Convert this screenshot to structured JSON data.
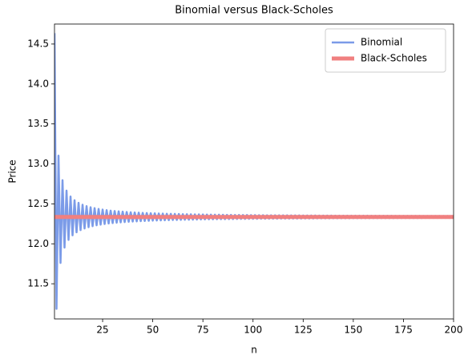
{
  "chart_data": {
    "type": "line",
    "title": "Binomial versus Black-Scholes",
    "xlabel": "n",
    "ylabel": "Price",
    "xlim": [
      1,
      200
    ],
    "xticks": [
      25,
      50,
      75,
      100,
      125,
      150,
      175,
      200
    ],
    "ylim": [
      11.06,
      14.75
    ],
    "yticks": [
      11.5,
      {
        "value": 12,
        "label": "12.0"
      },
      12.5,
      {
        "value": 13,
        "label": "13.0"
      },
      13.5,
      {
        "value": 14,
        "label": "14.0"
      },
      14.5
    ],
    "legend": "upper right",
    "grid": false,
    "series": [
      {
        "name": "Binomial",
        "color": "#7b9be8",
        "width": 2.5,
        "x": [
          1,
          2,
          3,
          4,
          5,
          6,
          7,
          8,
          9,
          10,
          11,
          12,
          13,
          14,
          15,
          16,
          17,
          18,
          19,
          20,
          21,
          22,
          23,
          24,
          25,
          26,
          27,
          28,
          29,
          30,
          31,
          32,
          33,
          34,
          35,
          36,
          37,
          38,
          39,
          40,
          41,
          42,
          43,
          44,
          45,
          46,
          47,
          48,
          49,
          50,
          51,
          52,
          53,
          54,
          55,
          56,
          57,
          58,
          59,
          60,
          61,
          62,
          63,
          64,
          65,
          66,
          67,
          68,
          69,
          70,
          71,
          72,
          73,
          74,
          75,
          76,
          77,
          78,
          79,
          80,
          81,
          82,
          83,
          84,
          85,
          86,
          87,
          88,
          89,
          90,
          91,
          92,
          93,
          94,
          95,
          96,
          97,
          98,
          99,
          100,
          101,
          102,
          103,
          104,
          105,
          106,
          107,
          108,
          109,
          110,
          111,
          112,
          113,
          114,
          115,
          116,
          117,
          118,
          119,
          120,
          121,
          122,
          123,
          124,
          125,
          126,
          127,
          128,
          129,
          130,
          131,
          132,
          133,
          134,
          135,
          136,
          137,
          138,
          139,
          140,
          141,
          142,
          143,
          144,
          145,
          146,
          147,
          148,
          149,
          150,
          151,
          152,
          153,
          154,
          155,
          156,
          157,
          158,
          159,
          160,
          161,
          162,
          163,
          164,
          165,
          166,
          167,
          168,
          169,
          170,
          171,
          172,
          173,
          174,
          175,
          176,
          177,
          178,
          179,
          180,
          181,
          182,
          183,
          184,
          185,
          186,
          187,
          188,
          189,
          190,
          191,
          192,
          193,
          194,
          195,
          196,
          197,
          198,
          199,
          200
        ],
        "values": [
          14.636,
          11.186,
          13.103,
          11.761,
          12.796,
          11.953,
          12.665,
          12.049,
          12.592,
          12.106,
          12.545,
          12.144,
          12.513,
          12.172,
          12.489,
          12.192,
          12.471,
          12.208,
          12.457,
          12.221,
          12.446,
          12.232,
          12.436,
          12.24,
          12.428,
          12.248,
          12.421,
          12.254,
          12.415,
          12.259,
          12.41,
          12.264,
          12.406,
          12.268,
          12.402,
          12.272,
          12.398,
          12.276,
          12.395,
          12.279,
          12.392,
          12.281,
          12.39,
          12.284,
          12.387,
          12.286,
          12.385,
          12.288,
          12.383,
          12.29,
          12.381,
          12.292,
          12.379,
          12.293,
          12.378,
          12.295,
          12.376,
          12.296,
          12.375,
          12.298,
          12.374,
          12.299,
          12.373,
          12.3,
          12.371,
          12.301,
          12.37,
          12.302,
          12.369,
          12.303,
          12.368,
          12.304,
          12.368,
          12.305,
          12.367,
          12.306,
          12.366,
          12.307,
          12.365,
          12.307,
          12.364,
          12.308,
          12.364,
          12.309,
          12.363,
          12.309,
          12.362,
          12.31,
          12.362,
          12.31,
          12.361,
          12.311,
          12.361,
          12.312,
          12.36,
          12.312,
          12.36,
          12.313,
          12.359,
          12.313,
          12.359,
          12.313,
          12.358,
          12.314,
          12.358,
          12.314,
          12.357,
          12.315,
          12.357,
          12.315,
          12.357,
          12.315,
          12.356,
          12.316,
          12.356,
          12.316,
          12.356,
          12.317,
          12.355,
          12.317,
          12.355,
          12.317,
          12.355,
          12.317,
          12.354,
          12.318,
          12.354,
          12.318,
          12.354,
          12.318,
          12.354,
          12.319,
          12.353,
          12.319,
          12.353,
          12.319,
          12.353,
          12.319,
          12.353,
          12.32,
          12.352,
          12.32,
          12.352,
          12.32,
          12.352,
          12.32,
          12.352,
          12.32,
          12.351,
          12.321,
          12.351,
          12.321,
          12.351,
          12.321,
          12.351,
          12.321,
          12.351,
          12.321,
          12.35,
          12.322,
          12.35,
          12.322,
          12.35,
          12.322,
          12.35,
          12.322,
          12.35,
          12.322,
          12.35,
          12.322,
          12.349,
          12.323,
          12.349,
          12.323,
          12.349,
          12.323,
          12.349,
          12.323,
          12.349,
          12.323,
          12.349,
          12.323,
          12.349,
          12.323,
          12.348,
          12.324,
          12.348,
          12.324,
          12.348,
          12.324,
          12.348,
          12.324,
          12.348,
          12.324,
          12.348,
          12.324,
          12.348,
          12.324,
          12.348,
          12.325
        ]
      },
      {
        "name": "Black-Scholes",
        "color": "#f08080",
        "width": 5,
        "x": [
          1,
          200
        ],
        "values": [
          12.336,
          12.336
        ]
      }
    ]
  }
}
